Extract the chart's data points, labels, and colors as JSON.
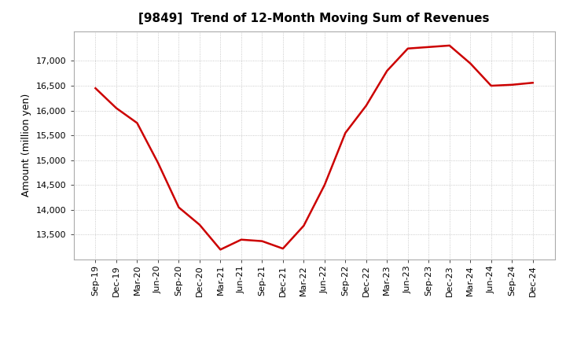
{
  "title": "[9849]  Trend of 12-Month Moving Sum of Revenues",
  "ylabel": "Amount (million yen)",
  "line_color": "#cc0000",
  "line_width": 1.8,
  "background_color": "#ffffff",
  "grid_color": "#bbbbbb",
  "x_labels": [
    "Sep-19",
    "Dec-19",
    "Mar-20",
    "Jun-20",
    "Sep-20",
    "Dec-20",
    "Mar-21",
    "Jun-21",
    "Sep-21",
    "Dec-21",
    "Mar-22",
    "Jun-22",
    "Sep-22",
    "Dec-22",
    "Mar-23",
    "Jun-23",
    "Sep-23",
    "Dec-23",
    "Mar-24",
    "Jun-24",
    "Sep-24",
    "Dec-24"
  ],
  "y_values": [
    16450,
    16050,
    15750,
    14950,
    14050,
    13700,
    13200,
    13400,
    13370,
    13220,
    13680,
    14500,
    15550,
    16100,
    16800,
    17250,
    17280,
    17310,
    16950,
    16500,
    16520,
    16560
  ],
  "ylim_min": 13000,
  "ylim_max": 17600,
  "yticks": [
    13500,
    14000,
    14500,
    15000,
    15500,
    16000,
    16500,
    17000
  ],
  "title_fontsize": 11,
  "tick_fontsize": 8,
  "ylabel_fontsize": 9
}
